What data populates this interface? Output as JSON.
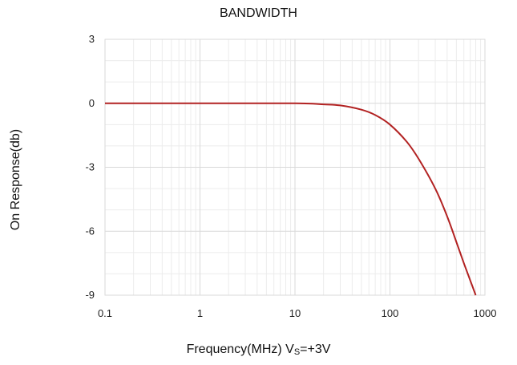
{
  "chart_data": {
    "type": "line",
    "title": "BANDWIDTH",
    "ylabel": "On Response(db)",
    "xlabel": {
      "main": "Frequency(MHz) V",
      "sub": "S",
      "tail": "=+3V"
    },
    "xscale": "log",
    "xlim": [
      0.1,
      1000
    ],
    "ylim": [
      -9,
      3
    ],
    "xticks": [
      0.1,
      1,
      10,
      100,
      1000
    ],
    "xtick_labels": [
      "0.1",
      "1",
      "10",
      "100",
      "1000"
    ],
    "yticks": [
      3,
      0,
      -3,
      -6,
      -9
    ],
    "ytick_labels": [
      "3",
      "0",
      "-3",
      "-6",
      "-9"
    ],
    "grid": true,
    "line_color": "#b22222",
    "series": [
      {
        "x": [
          0.1,
          1,
          10,
          20,
          30,
          50,
          70,
          100,
          150,
          200,
          300,
          400,
          500,
          600,
          700,
          800
        ],
        "y": [
          0,
          0,
          0,
          -0.05,
          -0.1,
          -0.3,
          -0.55,
          -1.0,
          -1.8,
          -2.6,
          -4.0,
          -5.3,
          -6.5,
          -7.5,
          -8.3,
          -9.0
        ]
      }
    ]
  }
}
